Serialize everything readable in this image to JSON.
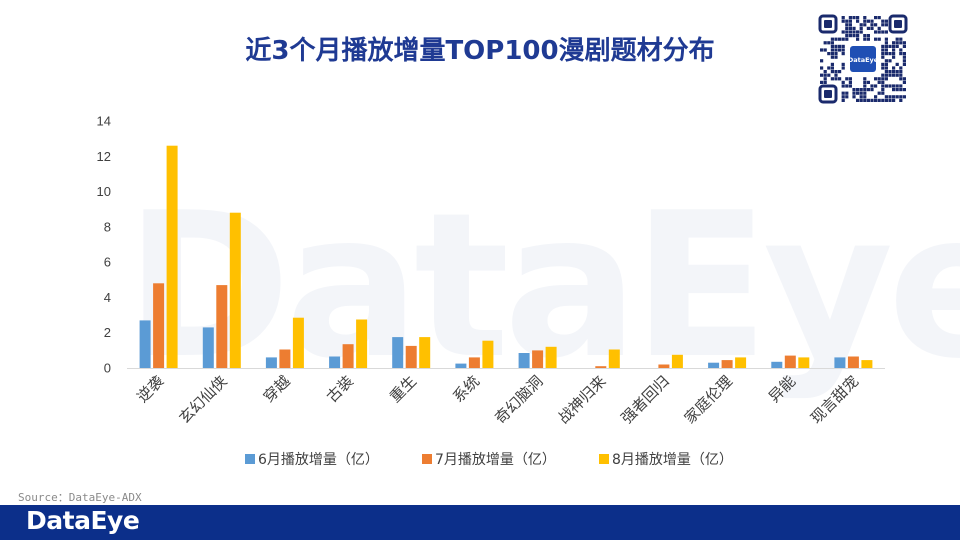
{
  "title": "近3个月播放增量TOP100漫剧题材分布",
  "watermark_text": "DataEye",
  "qr_logo_text": "DataEye",
  "source_text": "Source：DataEye-ADX",
  "footer_logo": "DataEye",
  "colors": {
    "title": "#1f3a93",
    "series_jun": "#5b9bd5",
    "series_jul": "#ed7d31",
    "series_aug": "#ffc000",
    "footer_bar": "#0c2f8a"
  },
  "chart_data": {
    "type": "bar",
    "title": "近3个月播放增量TOP100漫剧题材分布",
    "categories": [
      "逆袭",
      "玄幻仙侠",
      "穿越",
      "古装",
      "重生",
      "系统",
      "奇幻脑洞",
      "战神归来",
      "强者回归",
      "家庭伦理",
      "异能",
      "现言甜宠"
    ],
    "series": [
      {
        "name": "6月播放增量（亿）",
        "values": [
          2.7,
          2.3,
          0.6,
          0.65,
          1.75,
          0.25,
          0.85,
          0.0,
          0.0,
          0.3,
          0.35,
          0.6
        ]
      },
      {
        "name": "7月播放增量（亿）",
        "values": [
          4.8,
          4.7,
          1.05,
          1.35,
          1.25,
          0.6,
          1.0,
          0.1,
          0.2,
          0.45,
          0.7,
          0.65
        ]
      },
      {
        "name": "8月播放增量（亿）",
        "values": [
          12.6,
          8.8,
          2.85,
          2.75,
          1.75,
          1.55,
          1.2,
          1.05,
          0.75,
          0.6,
          0.6,
          0.45
        ]
      }
    ],
    "yticks": [
      0,
      2,
      4,
      6,
      8,
      10,
      12,
      14
    ],
    "ylim": [
      0,
      14
    ],
    "grid": false,
    "legend": "bottom"
  }
}
